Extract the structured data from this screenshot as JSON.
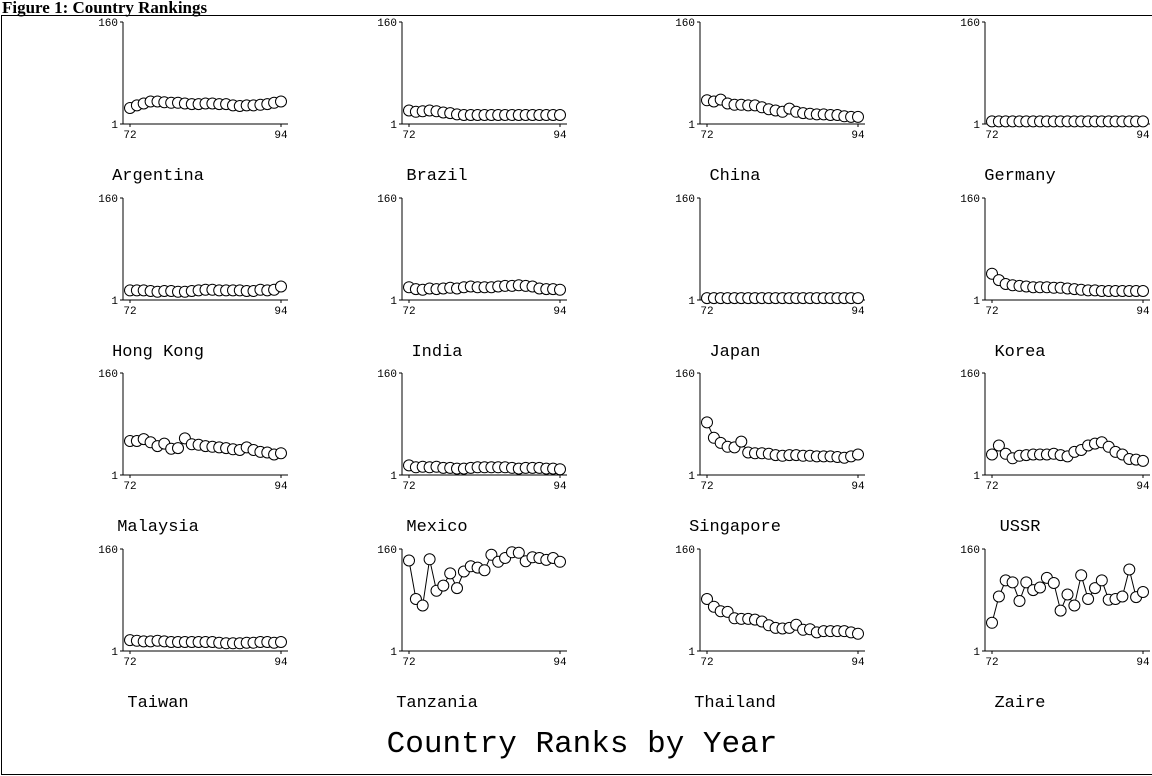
{
  "page": {
    "title": "Figure 1: Country Rankings"
  },
  "chart_data": {
    "type": "line",
    "title": "Country Ranks by Year",
    "x_ticks": [
      72,
      94
    ],
    "y_ticks": [
      1,
      160
    ],
    "ylim": [
      1,
      160
    ],
    "xlim": [
      72,
      94
    ],
    "marker": "open-circle",
    "grid": false,
    "colors": {
      "line": "#000000",
      "marker_fill": "#ffffff"
    },
    "x": [
      72,
      73,
      74,
      75,
      76,
      77,
      78,
      79,
      80,
      81,
      82,
      83,
      84,
      85,
      86,
      87,
      88,
      89,
      90,
      91,
      92,
      93,
      94
    ],
    "panels": [
      {
        "name": "Argentina",
        "values": [
          26,
          30,
          33,
          36,
          36,
          35,
          34,
          34,
          33,
          32,
          32,
          33,
          33,
          32,
          32,
          30,
          29,
          30,
          30,
          31,
          32,
          34,
          36
        ]
      },
      {
        "name": "Brazil",
        "values": [
          22,
          20,
          21,
          22,
          21,
          19,
          18,
          16,
          15,
          15,
          15,
          15,
          15,
          15,
          15,
          15,
          15,
          15,
          15,
          15,
          15,
          15,
          15
        ]
      },
      {
        "name": "China",
        "values": [
          38,
          36,
          39,
          33,
          31,
          31,
          30,
          30,
          27,
          24,
          22,
          20,
          25,
          20,
          18,
          17,
          16,
          16,
          15,
          15,
          13,
          12,
          12
        ]
      },
      {
        "name": "Germany",
        "values": [
          5,
          5,
          5,
          5,
          5,
          5,
          5,
          5,
          5,
          5,
          5,
          5,
          5,
          5,
          5,
          5,
          5,
          5,
          5,
          5,
          5,
          5,
          5
        ]
      },
      {
        "name": "Hong Kong",
        "values": [
          16,
          16,
          16,
          15,
          14,
          15,
          15,
          14,
          14,
          15,
          16,
          17,
          17,
          16,
          16,
          16,
          16,
          15,
          15,
          17,
          16,
          17,
          22
        ]
      },
      {
        "name": "India",
        "values": [
          21,
          18,
          17,
          19,
          18,
          19,
          20,
          19,
          21,
          22,
          21,
          21,
          21,
          22,
          23,
          23,
          24,
          23,
          22,
          19,
          18,
          18,
          17
        ]
      },
      {
        "name": "Japan",
        "values": [
          4,
          4,
          4,
          4,
          4,
          4,
          4,
          4,
          4,
          4,
          4,
          4,
          4,
          4,
          4,
          4,
          4,
          4,
          4,
          4,
          4,
          4,
          4
        ]
      },
      {
        "name": "Korea",
        "values": [
          42,
          32,
          26,
          24,
          23,
          22,
          21,
          21,
          21,
          20,
          20,
          19,
          18,
          17,
          16,
          16,
          15,
          15,
          15,
          15,
          15,
          15,
          15
        ]
      },
      {
        "name": "Malaysia",
        "values": [
          54,
          54,
          57,
          52,
          46,
          50,
          42,
          43,
          58,
          49,
          48,
          46,
          45,
          44,
          43,
          41,
          40,
          44,
          40,
          37,
          36,
          33,
          35
        ]
      },
      {
        "name": "Mexico",
        "values": [
          16,
          13,
          14,
          13,
          14,
          12,
          12,
          11,
          11,
          12,
          13,
          13,
          13,
          13,
          13,
          12,
          11,
          12,
          12,
          12,
          11,
          11,
          10
        ]
      },
      {
        "name": "Singapore",
        "values": [
          83,
          59,
          51,
          45,
          44,
          53,
          36,
          35,
          35,
          34,
          32,
          31,
          32,
          32,
          31,
          31,
          30,
          30,
          30,
          29,
          28,
          30,
          33
        ]
      },
      {
        "name": "USSR",
        "values": [
          33,
          47,
          34,
          27,
          31,
          32,
          33,
          33,
          33,
          34,
          32,
          30,
          37,
          40,
          47,
          50,
          52,
          45,
          37,
          33,
          26,
          25,
          23
        ]
      },
      {
        "name": "Taiwan",
        "values": [
          18,
          17,
          16,
          16,
          17,
          16,
          15,
          15,
          15,
          15,
          15,
          15,
          15,
          14,
          13,
          13,
          13,
          14,
          14,
          15,
          15,
          14,
          15
        ]
      },
      {
        "name": "Tanzania",
        "values": [
          142,
          82,
          72,
          144,
          95,
          103,
          122,
          99,
          125,
          133,
          131,
          127,
          151,
          140,
          146,
          155,
          154,
          141,
          147,
          146,
          143,
          146,
          140
        ]
      },
      {
        "name": "Thailand",
        "values": [
          82,
          70,
          63,
          62,
          52,
          51,
          51,
          50,
          47,
          41,
          37,
          36,
          37,
          42,
          34,
          35,
          30,
          32,
          32,
          32,
          32,
          30,
          28
        ]
      },
      {
        "name": "Zaire",
        "values": [
          45,
          86,
          111,
          108,
          79,
          108,
          96,
          100,
          115,
          107,
          64,
          89,
          72,
          119,
          82,
          99,
          111,
          81,
          82,
          86,
          128,
          85,
          93
        ]
      }
    ]
  }
}
